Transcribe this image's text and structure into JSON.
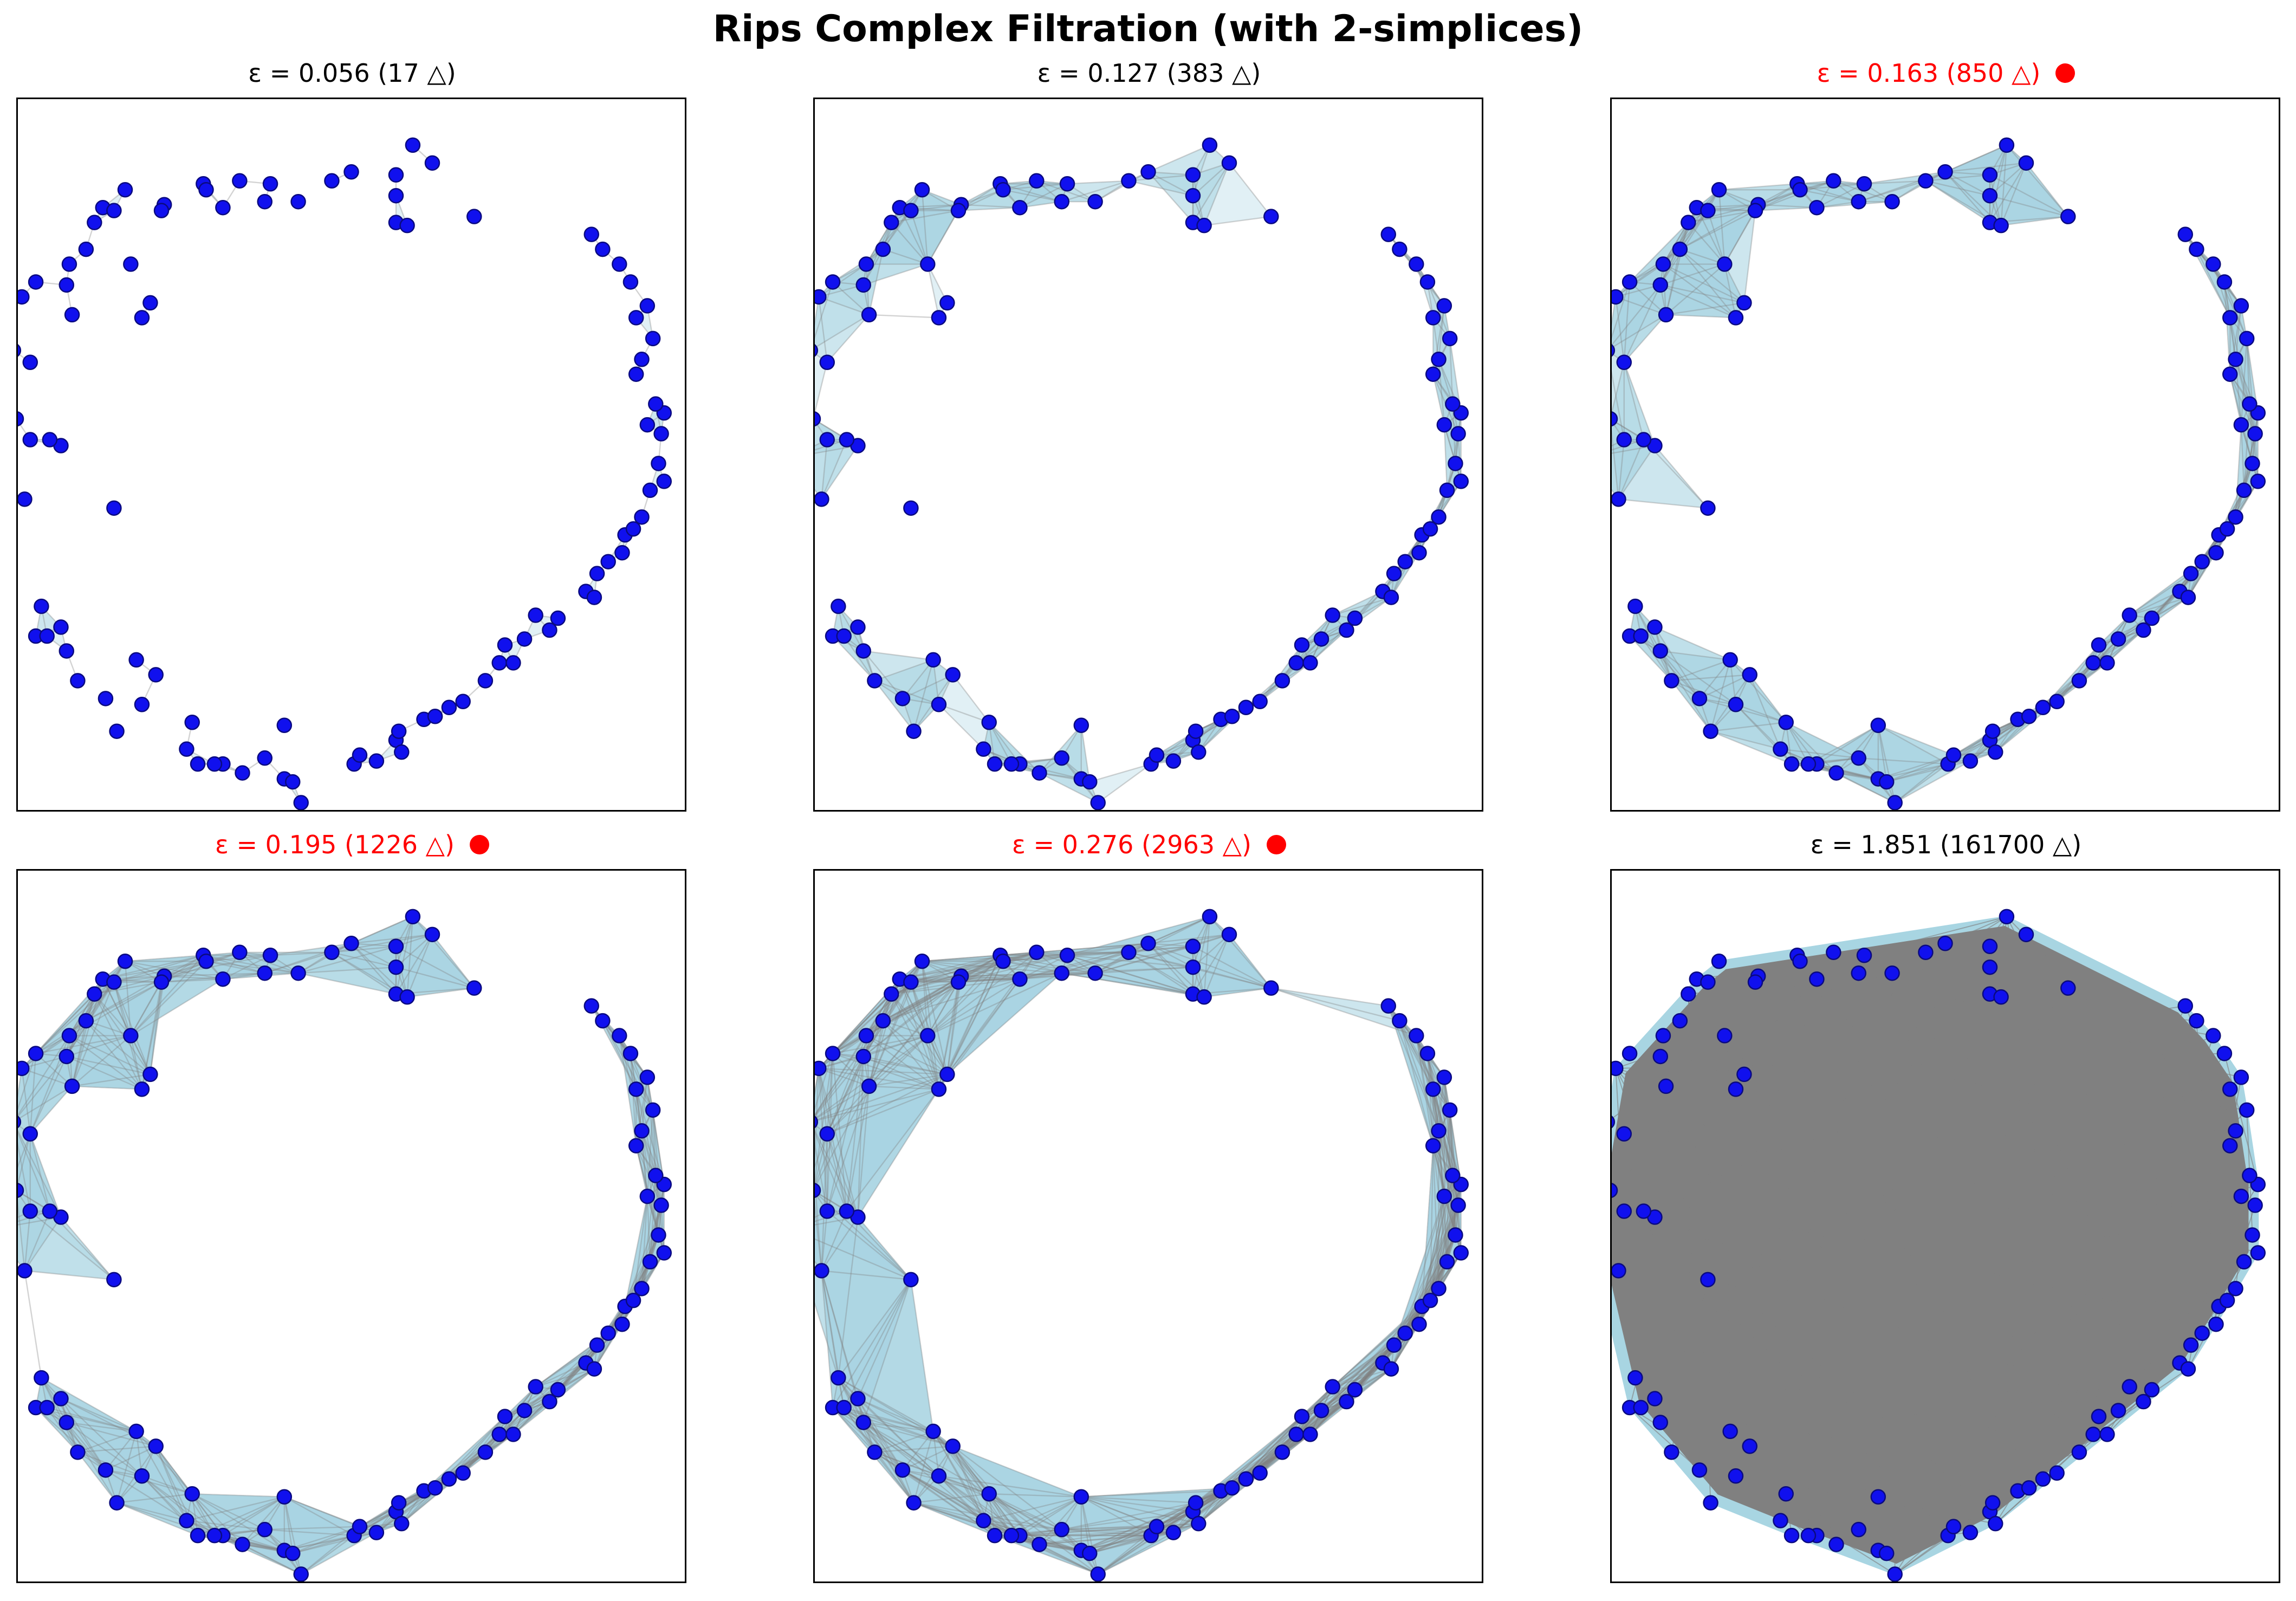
{
  "figure": {
    "title": "Rips Complex Filtration (with 2-simplices)",
    "colors": {
      "point_fill": "#1010ee",
      "point_edge": "#0a0a80",
      "triangle_fill": "#a8d5e2",
      "edge": "#808080",
      "highlight_title": "#ff0000",
      "normal_title": "#000000",
      "highlight_marker": "#ff0000"
    }
  },
  "chart_data": [
    {
      "type": "scatter",
      "title": "ε = 0.056 (17 △)",
      "epsilon": 0.056,
      "triangles": 17,
      "highlight": false,
      "xlim": [
        -1.2,
        1.2
      ],
      "ylim": [
        -1.2,
        1.2
      ],
      "grid": false,
      "ticks": "none"
    },
    {
      "type": "scatter",
      "title": "ε = 0.127 (383 △)",
      "epsilon": 0.127,
      "triangles": 383,
      "highlight": false,
      "xlim": [
        -1.2,
        1.2
      ],
      "ylim": [
        -1.2,
        1.2
      ],
      "grid": false,
      "ticks": "none"
    },
    {
      "type": "scatter",
      "title": "ε = 0.163 (850 △)",
      "epsilon": 0.163,
      "triangles": 850,
      "highlight": true,
      "xlim": [
        -1.2,
        1.2
      ],
      "ylim": [
        -1.2,
        1.2
      ],
      "grid": false,
      "ticks": "none"
    },
    {
      "type": "scatter",
      "title": "ε = 0.195 (1226 △)",
      "epsilon": 0.195,
      "triangles": 1226,
      "highlight": true,
      "xlim": [
        -1.2,
        1.2
      ],
      "ylim": [
        -1.2,
        1.2
      ],
      "grid": false,
      "ticks": "none"
    },
    {
      "type": "scatter",
      "title": "ε = 0.276 (2963 △)",
      "epsilon": 0.276,
      "triangles": 2963,
      "highlight": true,
      "xlim": [
        -1.2,
        1.2
      ],
      "ylim": [
        -1.2,
        1.2
      ],
      "grid": false,
      "ticks": "none"
    },
    {
      "type": "scatter",
      "title": "ε = 1.851 (161700 △)",
      "epsilon": 1.851,
      "triangles": 161700,
      "highlight": false,
      "xlim": [
        -1.2,
        1.2
      ],
      "ylim": [
        -1.2,
        1.2
      ],
      "grid": false,
      "ticks": "none"
    }
  ],
  "points": [
    [
      0.22,
      1.04
    ],
    [
      0.29,
      0.98
    ],
    [
      0.16,
      0.94
    ],
    [
      0.16,
      0.87
    ],
    [
      0.44,
      0.8
    ],
    [
      0.16,
      0.78
    ],
    [
      0.2,
      0.77
    ],
    [
      0.0,
      0.95
    ],
    [
      -0.07,
      0.92
    ],
    [
      -0.19,
      0.85
    ],
    [
      -0.31,
      0.85
    ],
    [
      -0.4,
      0.92
    ],
    [
      -0.29,
      0.91
    ],
    [
      -0.53,
      0.91
    ],
    [
      -0.52,
      0.89
    ],
    [
      -0.46,
      0.83
    ],
    [
      -0.67,
      0.84
    ],
    [
      -0.81,
      0.89
    ],
    [
      -0.68,
      0.82
    ],
    [
      -0.89,
      0.83
    ],
    [
      -0.85,
      0.82
    ],
    [
      -0.92,
      0.78
    ],
    [
      -0.95,
      0.69
    ],
    [
      -1.01,
      0.64
    ],
    [
      -0.79,
      0.64
    ],
    [
      -1.02,
      0.57
    ],
    [
      -1.13,
      0.58
    ],
    [
      -1.18,
      0.53
    ],
    [
      -0.72,
      0.51
    ],
    [
      -0.75,
      0.46
    ],
    [
      -1.0,
      0.47
    ],
    [
      -1.21,
      0.35
    ],
    [
      -1.15,
      0.31
    ],
    [
      -1.2,
      0.12
    ],
    [
      -1.15,
      0.05
    ],
    [
      -1.04,
      0.03
    ],
    [
      -1.08,
      0.05
    ],
    [
      -1.28,
      -0.01
    ],
    [
      -1.17,
      -0.15
    ],
    [
      -0.85,
      -0.18
    ],
    [
      -1.11,
      -0.51
    ],
    [
      -1.04,
      -0.58
    ],
    [
      -1.13,
      -0.61
    ],
    [
      -1.09,
      -0.61
    ],
    [
      -1.02,
      -0.66
    ],
    [
      -0.77,
      -0.69
    ],
    [
      -0.7,
      -0.74
    ],
    [
      -0.98,
      -0.76
    ],
    [
      -0.75,
      -0.84
    ],
    [
      -0.88,
      -0.82
    ],
    [
      -0.84,
      -0.93
    ],
    [
      -0.57,
      -0.9
    ],
    [
      -0.59,
      -0.99
    ],
    [
      -0.55,
      -1.04
    ],
    [
      -0.46,
      -1.04
    ],
    [
      -0.49,
      -1.04
    ],
    [
      -0.31,
      -1.02
    ],
    [
      -0.39,
      -1.07
    ],
    [
      -0.24,
      -1.09
    ],
    [
      -0.21,
      -1.1
    ],
    [
      -0.18,
      -1.17
    ],
    [
      -0.24,
      -0.91
    ],
    [
      0.01,
      -1.04
    ],
    [
      0.03,
      -1.01
    ],
    [
      0.09,
      -1.03
    ],
    [
      0.16,
      -0.96
    ],
    [
      0.18,
      -1.0
    ],
    [
      0.17,
      -0.93
    ],
    [
      0.26,
      -0.89
    ],
    [
      0.3,
      -0.88
    ],
    [
      0.35,
      -0.85
    ],
    [
      0.4,
      -0.83
    ],
    [
      0.48,
      -0.76
    ],
    [
      0.53,
      -0.7
    ],
    [
      0.55,
      -0.64
    ],
    [
      0.58,
      -0.7
    ],
    [
      0.62,
      -0.62
    ],
    [
      0.66,
      -0.54
    ],
    [
      0.71,
      -0.59
    ],
    [
      0.74,
      -0.55
    ],
    [
      0.84,
      -0.46
    ],
    [
      0.87,
      -0.48
    ],
    [
      0.88,
      -0.4
    ],
    [
      0.92,
      -0.36
    ],
    [
      0.97,
      -0.33
    ],
    [
      0.98,
      -0.27
    ],
    [
      1.01,
      -0.25
    ],
    [
      1.04,
      -0.21
    ],
    [
      1.07,
      -0.12
    ],
    [
      1.12,
      -0.09
    ],
    [
      1.1,
      -0.03
    ],
    [
      1.11,
      0.07
    ],
    [
      1.06,
      0.1
    ],
    [
      1.12,
      0.14
    ],
    [
      1.09,
      0.17
    ],
    [
      1.02,
      0.27
    ],
    [
      1.04,
      0.32
    ],
    [
      1.08,
      0.39
    ],
    [
      1.02,
      0.46
    ],
    [
      1.06,
      0.5
    ],
    [
      1.0,
      0.58
    ],
    [
      0.96,
      0.64
    ],
    [
      0.9,
      0.69
    ],
    [
      0.86,
      0.74
    ]
  ]
}
